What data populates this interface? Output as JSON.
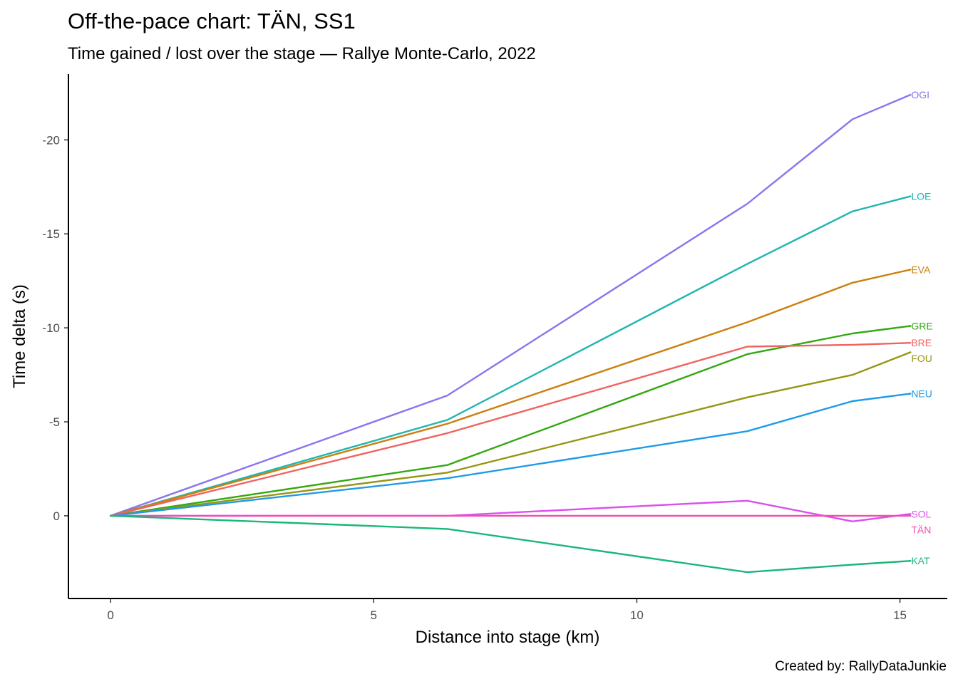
{
  "chart_data": {
    "type": "line",
    "title": "Off-the-pace chart: TÄN, SS1",
    "subtitle": "Time gained / lost over the stage — Rallye Monte-Carlo, 2022",
    "caption": "Created by: RallyDataJunkie",
    "xlabel": "Distance into stage (km)",
    "ylabel": "Time delta (s)",
    "xlim": [
      -0.8,
      15.9
    ],
    "ylim": [
      4.4,
      -23.5
    ],
    "y_reversed": true,
    "x_ticks": [
      0,
      5,
      10,
      15
    ],
    "x_tick_labels": [
      "0",
      "5",
      "10",
      "15"
    ],
    "y_ticks": [
      -20,
      -15,
      -10,
      -5,
      0
    ],
    "y_tick_labels": [
      "-20",
      "-15",
      "-10",
      "-5",
      "0"
    ],
    "grid": false,
    "legend": "none",
    "x": [
      0,
      6.4,
      12.1,
      14.1,
      15.2
    ],
    "series": [
      {
        "name": "OGI",
        "color": "#8B74F0",
        "values": [
          0,
          -6.4,
          -16.6,
          -21.1,
          -22.4
        ]
      },
      {
        "name": "LOE",
        "color": "#1FB5B0",
        "values": [
          0,
          -5.1,
          -13.4,
          -16.2,
          -17.0
        ]
      },
      {
        "name": "EVA",
        "color": "#CC7F0C",
        "values": [
          0,
          -4.9,
          -10.3,
          -12.4,
          -13.1
        ]
      },
      {
        "name": "GRE",
        "color": "#33A811",
        "values": [
          0,
          -2.7,
          -8.6,
          -9.7,
          -10.1
        ]
      },
      {
        "name": "BRE",
        "color": "#EE6460",
        "values": [
          0,
          -4.4,
          -9.0,
          -9.1,
          -9.2
        ]
      },
      {
        "name": "FOU",
        "color": "#959613",
        "values": [
          0,
          -2.3,
          -6.3,
          -7.5,
          -8.7
        ]
      },
      {
        "name": "NEU",
        "color": "#1E9BE6",
        "values": [
          0,
          -2.0,
          -4.5,
          -6.1,
          -6.5
        ]
      },
      {
        "name": "SOL",
        "color": "#DB4FEE",
        "values": [
          0,
          0,
          -0.8,
          0.3,
          -0.1
        ]
      },
      {
        "name": "TÄN",
        "color": "#F14FB0",
        "values": [
          0,
          0,
          0,
          0,
          0
        ]
      },
      {
        "name": "KAT",
        "color": "#1AB77A",
        "values": [
          0,
          0.7,
          3.0,
          2.6,
          2.4
        ]
      }
    ]
  }
}
